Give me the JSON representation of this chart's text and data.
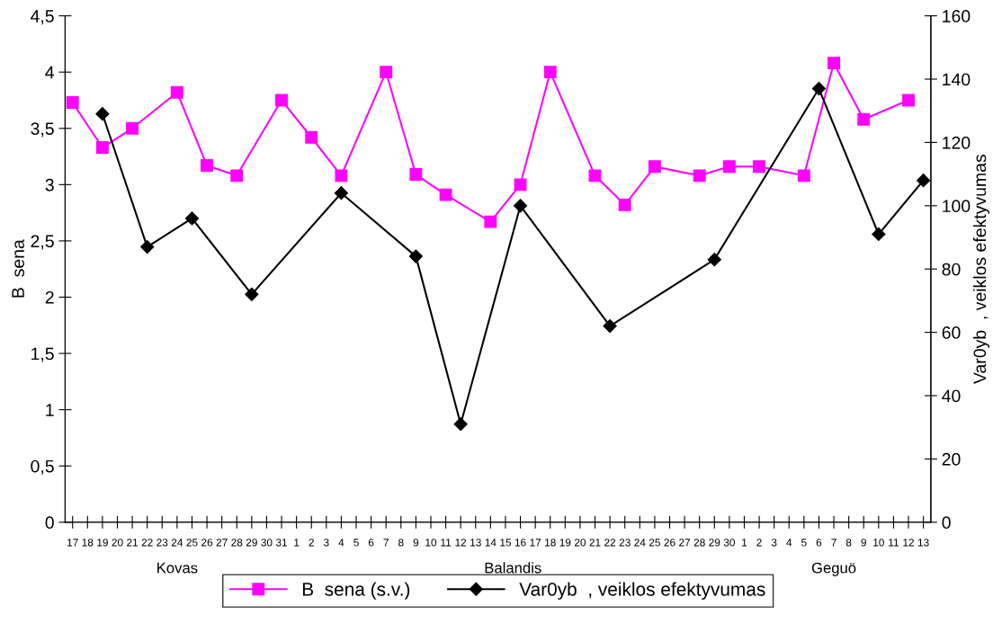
{
  "chart_data": {
    "type": "line",
    "categories": [
      "17",
      "18",
      "19",
      "20",
      "21",
      "22",
      "23",
      "24",
      "25",
      "26",
      "27",
      "28",
      "29",
      "30",
      "31",
      "1",
      "2",
      "3",
      "4",
      "5",
      "6",
      "7",
      "8",
      "9",
      "10",
      "11",
      "12",
      "13",
      "14",
      "15",
      "16",
      "17",
      "18",
      "19",
      "20",
      "21",
      "22",
      "23",
      "24",
      "25",
      "26",
      "27",
      "28",
      "29",
      "30",
      "1",
      "2",
      "3",
      "4",
      "5",
      "6",
      "7",
      "8",
      "9",
      "10",
      "11",
      "12",
      "13"
    ],
    "series": [
      {
        "name": "B  sena (s.v.)",
        "color": "#ff00ff",
        "marker": "square",
        "values": [
          3.73,
          null,
          3.33,
          null,
          3.5,
          null,
          null,
          3.82,
          null,
          3.17,
          null,
          3.08,
          null,
          null,
          3.75,
          null,
          3.42,
          null,
          3.08,
          null,
          null,
          4.0,
          null,
          3.09,
          null,
          2.91,
          null,
          null,
          2.67,
          null,
          3.0,
          null,
          4.0,
          null,
          null,
          3.08,
          null,
          2.82,
          null,
          3.16,
          null,
          null,
          3.08,
          null,
          3.16,
          null,
          3.16,
          null,
          null,
          3.08,
          null,
          4.08,
          null,
          3.58,
          null,
          null,
          3.75,
          null
        ]
      },
      {
        "name": "Var0yb  , veiklos efektyvumas",
        "color": "#000000",
        "marker": "diamond",
        "axis": "y2",
        "values": [
          null,
          null,
          129,
          null,
          null,
          87,
          null,
          null,
          96,
          null,
          null,
          null,
          72,
          null,
          null,
          null,
          null,
          null,
          104,
          null,
          null,
          null,
          null,
          84,
          null,
          null,
          31,
          null,
          null,
          null,
          100,
          null,
          null,
          null,
          null,
          null,
          62,
          null,
          null,
          null,
          null,
          null,
          null,
          83,
          null,
          null,
          null,
          null,
          null,
          null,
          137,
          null,
          null,
          null,
          91,
          null,
          null,
          108
        ]
      }
    ],
    "ylabel": "B  sena",
    "y2label": "Var0yb  , veiklos efektyvumas",
    "ylim": [
      0,
      4.5
    ],
    "yticks": [
      0,
      {
        "value": 0.5,
        "label": "0,5"
      },
      1,
      {
        "value": 1.5,
        "label": "1,5"
      },
      2,
      {
        "value": 2.5,
        "label": "2,5"
      },
      3,
      {
        "value": 3.5,
        "label": "3,5"
      },
      4,
      {
        "value": 4.5,
        "label": "4,5"
      }
    ],
    "y2lim": [
      0,
      160
    ],
    "y2ticks": [
      0,
      20,
      40,
      60,
      80,
      100,
      120,
      140,
      160
    ],
    "annotations": [
      "Kovas",
      "Balandis",
      "Geguö"
    ],
    "legend": "bottom",
    "grid": false
  }
}
